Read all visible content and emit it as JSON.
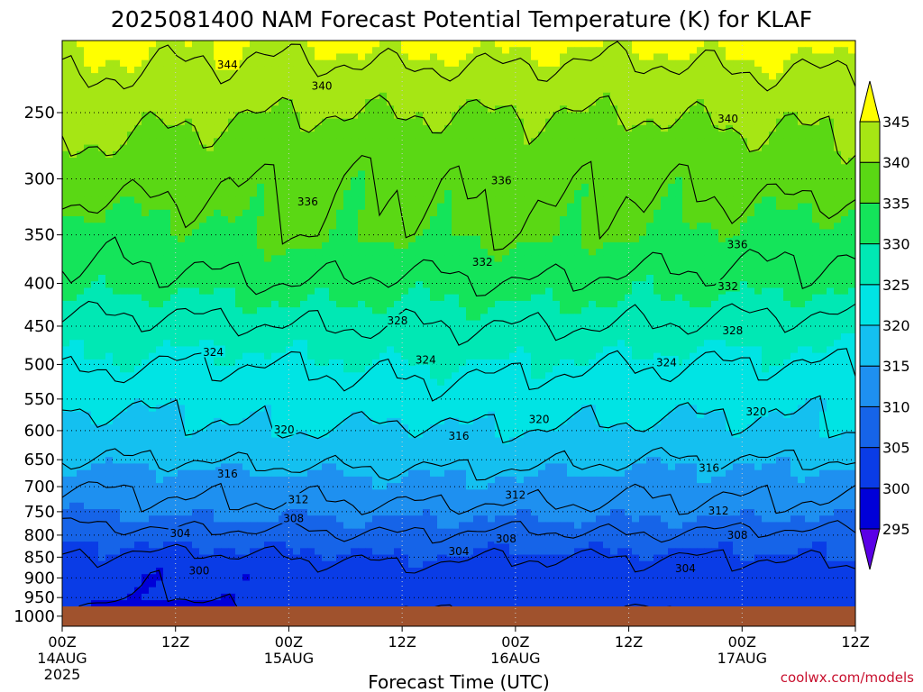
{
  "title": "2025081400 NAM Forecast Potential Temperature (K) for KLAF",
  "credit": "coolwx.com/models",
  "chart_data": {
    "type": "heatmap",
    "xlabel": "Forecast Time (UTC)",
    "ylabel": "",
    "y_scale": "log-pressure",
    "ylim": [
      1000,
      200
    ],
    "xlim": [
      "2025-08-14 00Z",
      "2025-08-17 12Z"
    ],
    "y_ticks": [
      250,
      300,
      350,
      400,
      450,
      500,
      550,
      600,
      650,
      700,
      750,
      800,
      850,
      900,
      950,
      1000
    ],
    "x_ticks": [
      {
        "hour": 0,
        "l1": "00Z",
        "l2": "14AUG",
        "l3": "2025"
      },
      {
        "hour": 12,
        "l1": "12Z",
        "l2": "",
        "l3": ""
      },
      {
        "hour": 24,
        "l1": "00Z",
        "l2": "15AUG",
        "l3": ""
      },
      {
        "hour": 36,
        "l1": "12Z",
        "l2": "",
        "l3": ""
      },
      {
        "hour": 48,
        "l1": "00Z",
        "l2": "16AUG",
        "l3": ""
      },
      {
        "hour": 60,
        "l1": "12Z",
        "l2": "",
        "l3": ""
      },
      {
        "hour": 72,
        "l1": "00Z",
        "l2": "17AUG",
        "l3": ""
      },
      {
        "hour": 84,
        "l1": "12Z",
        "l2": "",
        "l3": ""
      }
    ],
    "grid": true,
    "colorbar": {
      "levels": [
        295,
        300,
        305,
        310,
        315,
        320,
        325,
        330,
        335,
        340,
        345
      ],
      "colors": [
        "#0000d8",
        "#0a3ce6",
        "#1664e8",
        "#1e90f0",
        "#14c0f0",
        "#00e4e4",
        "#00e8b4",
        "#14e45a",
        "#5ad814",
        "#a6e614",
        "#ffff00"
      ],
      "below_color": "#5a00e6",
      "placement": "right"
    },
    "ground_color": "#a0522d",
    "isotherm_levels": [
      300,
      304,
      308,
      312,
      316,
      320,
      324,
      328,
      332,
      336,
      340,
      344
    ],
    "profile_pressures": [
      200,
      250,
      300,
      350,
      400,
      450,
      500,
      550,
      600,
      650,
      700,
      750,
      800,
      850,
      900,
      950,
      975,
      1000
    ],
    "profile_hours": [
      0,
      12,
      24,
      36,
      48,
      60,
      72,
      84
    ],
    "theta": [
      [
        347,
        346,
        346,
        347,
        347,
        346,
        347,
        347
      ],
      [
        342,
        341,
        340,
        340,
        340,
        340,
        341,
        341
      ],
      [
        338,
        337,
        336,
        336,
        337,
        336,
        337,
        338
      ],
      [
        333,
        334,
        336,
        335,
        336,
        335,
        334,
        333
      ],
      [
        331,
        331,
        332,
        331,
        332,
        331,
        331,
        331
      ],
      [
        327,
        327,
        328,
        328,
        328,
        328,
        327,
        327
      ],
      [
        325,
        324,
        324,
        325,
        325,
        324,
        324,
        324
      ],
      [
        321,
        321,
        322,
        323,
        322,
        322,
        321,
        321
      ],
      [
        318,
        319,
        320,
        319,
        320,
        319,
        319,
        320
      ],
      [
        316,
        316,
        317,
        317,
        317,
        316,
        316,
        316
      ],
      [
        312,
        313,
        313,
        314,
        314,
        313,
        313,
        313
      ],
      [
        310,
        311,
        311,
        311,
        311,
        311,
        311,
        311
      ],
      [
        306,
        307,
        307,
        308,
        307,
        308,
        307,
        307
      ],
      [
        304,
        303,
        304,
        305,
        304,
        304,
        304,
        305
      ],
      [
        302,
        300,
        302,
        302,
        302,
        302,
        302,
        302
      ],
      [
        301,
        300,
        301,
        301,
        301,
        301,
        301,
        301
      ],
      [
        300,
        299,
        301,
        300,
        301,
        300,
        301,
        301
      ],
      [
        300,
        299,
        300,
        299,
        300,
        299,
        300,
        300
      ]
    ],
    "contour_labels": [
      {
        "text": "344",
        "hour": 17.5,
        "p": 219
      },
      {
        "text": "340",
        "hour": 27.5,
        "p": 232
      },
      {
        "text": "340",
        "hour": 70.5,
        "p": 254
      },
      {
        "text": "336",
        "hour": 26,
        "p": 319
      },
      {
        "text": "336",
        "hour": 46.5,
        "p": 301
      },
      {
        "text": "336",
        "hour": 71.5,
        "p": 359
      },
      {
        "text": "332",
        "hour": 44.5,
        "p": 377
      },
      {
        "text": "332",
        "hour": 70.5,
        "p": 403
      },
      {
        "text": "328",
        "hour": 35.5,
        "p": 443
      },
      {
        "text": "328",
        "hour": 71,
        "p": 455
      },
      {
        "text": "324",
        "hour": 16,
        "p": 483
      },
      {
        "text": "324",
        "hour": 38.5,
        "p": 493
      },
      {
        "text": "324",
        "hour": 64,
        "p": 497
      },
      {
        "text": "320",
        "hour": 23.5,
        "p": 598
      },
      {
        "text": "320",
        "hour": 50.5,
        "p": 581
      },
      {
        "text": "320",
        "hour": 73.5,
        "p": 569
      },
      {
        "text": "316",
        "hour": 17.5,
        "p": 675
      },
      {
        "text": "316",
        "hour": 42,
        "p": 608
      },
      {
        "text": "316",
        "hour": 68.5,
        "p": 664
      },
      {
        "text": "312",
        "hour": 25,
        "p": 725
      },
      {
        "text": "312",
        "hour": 48,
        "p": 716
      },
      {
        "text": "312",
        "hour": 69.5,
        "p": 747
      },
      {
        "text": "308",
        "hour": 24.5,
        "p": 763
      },
      {
        "text": "308",
        "hour": 47,
        "p": 807
      },
      {
        "text": "308",
        "hour": 71.5,
        "p": 799
      },
      {
        "text": "304",
        "hour": 12.5,
        "p": 795
      },
      {
        "text": "304",
        "hour": 42,
        "p": 836
      },
      {
        "text": "304",
        "hour": 66,
        "p": 876
      },
      {
        "text": "300",
        "hour": 14.5,
        "p": 881
      }
    ]
  }
}
